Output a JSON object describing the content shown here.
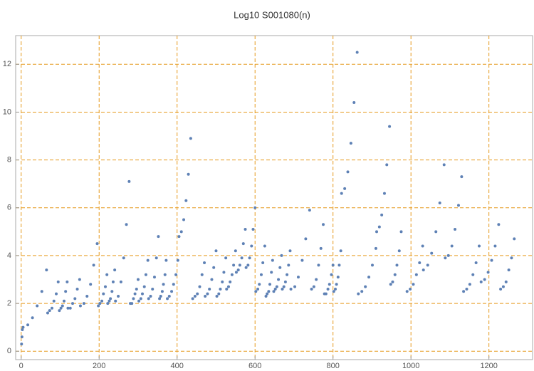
{
  "chart_data": {
    "type": "scatter",
    "title": "Log10 S001080(n)",
    "color": "#5e81b5",
    "grid": true,
    "grid_color": "#e69a1e",
    "xlim": [
      -5,
      1312
    ],
    "ylim": [
      -0.35,
      13.2
    ],
    "xticks": [
      0,
      200,
      400,
      600,
      800,
      1000,
      1200
    ],
    "yticks": [
      0,
      2,
      4,
      6,
      8,
      10,
      12
    ],
    "x": [
      1,
      2,
      3,
      5,
      17,
      29,
      41,
      53,
      65,
      68,
      73,
      79,
      84,
      90,
      95,
      98,
      102,
      106,
      110,
      114,
      118,
      120,
      126,
      132,
      138,
      144,
      150,
      152,
      161,
      169,
      178,
      186,
      195,
      198,
      202,
      207,
      211,
      216,
      220,
      222,
      226,
      229,
      233,
      236,
      240,
      242,
      249,
      256,
      263,
      270,
      277,
      280,
      284,
      288,
      292,
      296,
      300,
      302,
      307,
      311,
      316,
      320,
      325,
      327,
      332,
      337,
      342,
      347,
      352,
      355,
      358,
      362,
      365,
      369,
      372,
      375,
      380,
      386,
      391,
      397,
      402,
      405,
      411,
      417,
      423,
      429,
      435,
      440,
      446,
      452,
      458,
      464,
      470,
      472,
      478,
      483,
      489,
      494,
      500,
      502,
      507,
      511,
      516,
      520,
      525,
      527,
      532,
      536,
      541,
      545,
      550,
      552,
      557,
      561,
      566,
      570,
      575,
      577,
      582,
      586,
      591,
      595,
      600,
      602,
      607,
      611,
      616,
      620,
      625,
      628,
      631,
      635,
      638,
      642,
      645,
      648,
      652,
      656,
      660,
      664,
      668,
      670,
      674,
      678,
      682,
      686,
      690,
      692,
      702,
      711,
      721,
      730,
      740,
      745,
      751,
      757,
      763,
      769,
      775,
      778,
      782,
      787,
      791,
      796,
      800,
      802,
      806,
      809,
      813,
      816,
      820,
      822,
      830,
      838,
      846,
      854,
      862,
      865,
      874,
      883,
      892,
      901,
      910,
      912,
      919,
      925,
      932,
      938,
      945,
      948,
      953,
      959,
      964,
      970,
      975,
      990,
      998,
      1006,
      1014,
      1022,
      1030,
      1032,
      1043,
      1053,
      1064,
      1074,
      1085,
      1088,
      1096,
      1105,
      1113,
      1122,
      1130,
      1135,
      1143,
      1151,
      1159,
      1167,
      1175,
      1180,
      1189,
      1198,
      1207,
      1216,
      1225,
      1230,
      1237,
      1244,
      1251,
      1258,
      1265
    ],
    "values": [
      0.3,
      0.6,
      0.9,
      1.0,
      1.1,
      1.4,
      1.9,
      2.5,
      3.4,
      1.6,
      1.7,
      1.8,
      2.1,
      2.4,
      2.9,
      1.7,
      1.8,
      1.9,
      2.1,
      2.5,
      2.9,
      1.8,
      1.8,
      2.0,
      2.2,
      2.6,
      3.0,
      1.9,
      2.0,
      2.3,
      2.8,
      3.6,
      4.5,
      1.9,
      2.0,
      2.1,
      2.4,
      2.7,
      3.2,
      2.0,
      2.1,
      2.2,
      2.5,
      2.9,
      3.4,
      2.1,
      2.3,
      2.9,
      3.9,
      5.3,
      7.1,
      2.0,
      2.0,
      2.2,
      2.4,
      2.6,
      3.0,
      2.1,
      2.2,
      2.4,
      2.7,
      3.2,
      3.8,
      2.2,
      2.3,
      2.6,
      3.1,
      3.9,
      4.8,
      2.2,
      2.3,
      2.5,
      2.8,
      3.2,
      3.8,
      2.2,
      2.3,
      2.5,
      2.8,
      3.2,
      3.8,
      4.8,
      5.0,
      5.5,
      6.3,
      7.4,
      8.9,
      2.2,
      2.3,
      2.4,
      2.7,
      3.2,
      3.7,
      2.3,
      2.4,
      2.6,
      3.0,
      3.5,
      4.2,
      2.3,
      2.4,
      2.6,
      2.9,
      3.3,
      3.9,
      2.6,
      2.7,
      2.9,
      3.2,
      3.6,
      4.2,
      3.3,
      3.4,
      3.6,
      3.9,
      4.5,
      5.1,
      3.5,
      3.6,
      3.9,
      4.4,
      5.1,
      6.0,
      2.5,
      2.6,
      2.8,
      3.2,
      3.7,
      4.4,
      2.3,
      2.4,
      2.5,
      2.8,
      3.3,
      3.8,
      2.5,
      2.6,
      2.7,
      3.0,
      3.5,
      4.0,
      2.6,
      2.7,
      2.9,
      3.2,
      3.6,
      4.2,
      2.6,
      2.7,
      3.1,
      3.8,
      4.7,
      5.9,
      2.6,
      2.7,
      3.0,
      3.6,
      4.3,
      5.3,
      2.4,
      2.4,
      2.6,
      2.8,
      3.2,
      3.6,
      2.5,
      2.6,
      2.8,
      3.1,
      3.6,
      4.2,
      6.6,
      6.8,
      7.5,
      8.7,
      10.4,
      12.5,
      2.4,
      2.5,
      2.7,
      3.1,
      3.6,
      4.3,
      5.0,
      5.2,
      5.7,
      6.6,
      7.8,
      9.4,
      2.8,
      2.9,
      3.2,
      3.6,
      4.2,
      5.0,
      2.5,
      2.6,
      2.8,
      3.2,
      3.7,
      4.4,
      3.4,
      3.6,
      4.1,
      5.0,
      6.2,
      7.8,
      3.9,
      4.0,
      4.4,
      5.1,
      6.1,
      7.3,
      2.5,
      2.6,
      2.8,
      3.2,
      3.7,
      4.4,
      2.9,
      3.0,
      3.3,
      3.8,
      4.4,
      5.3,
      2.6,
      2.7,
      2.9,
      3.4,
      3.9,
      4.7
    ]
  }
}
